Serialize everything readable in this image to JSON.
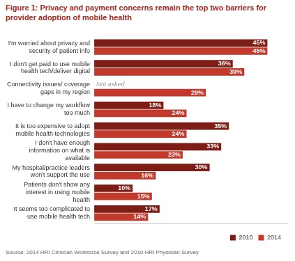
{
  "chart_data": {
    "type": "bar",
    "orientation": "horizontal",
    "title": "Figure 1: Privacy and payment concerns remain the top two barriers for provider adoption of mobile health",
    "source": "Source: 2014 HRI Clinician Workforce Survey and 2010 HRI Physician Survey",
    "categories": [
      "I'm worried about privacy and security of patient info",
      "I don't get paid to use mobile health tech/deliver digital",
      "Connectivity issues/ coverage gaps in my region",
      "I have to change my workflow too much",
      "It is too expensive to adopt mobile health technologies",
      "I don't have enough information on what is available",
      "My hospital/practice leaders won't support the use",
      "Patients don't show any interest in using mobile health",
      "It seems too complicated to use mobile health tech"
    ],
    "series": [
      {
        "name": "2010",
        "color": "#7e1d16",
        "values": [
          45,
          36,
          null,
          18,
          35,
          33,
          30,
          10,
          17
        ],
        "value_labels": [
          "45%",
          "36%",
          null,
          "18%",
          "35%",
          "33%",
          "30%",
          "10%",
          "17%"
        ]
      },
      {
        "name": "2014",
        "color": "#c23a2c",
        "values": [
          45,
          39,
          29,
          24,
          24,
          23,
          16,
          15,
          14
        ],
        "value_labels": [
          "45%",
          "39%",
          "29%",
          "24%",
          "24%",
          "23%",
          "16%",
          "15%",
          "14%"
        ]
      }
    ],
    "annotations": [
      {
        "category": "Connectivity issues/ coverage gaps in my region",
        "series": "2010",
        "text": "Not asked"
      }
    ],
    "xlim": [
      0,
      50
    ],
    "tick_labels": "y",
    "grid": false,
    "data_labels": true,
    "legend": "bottom-right"
  }
}
